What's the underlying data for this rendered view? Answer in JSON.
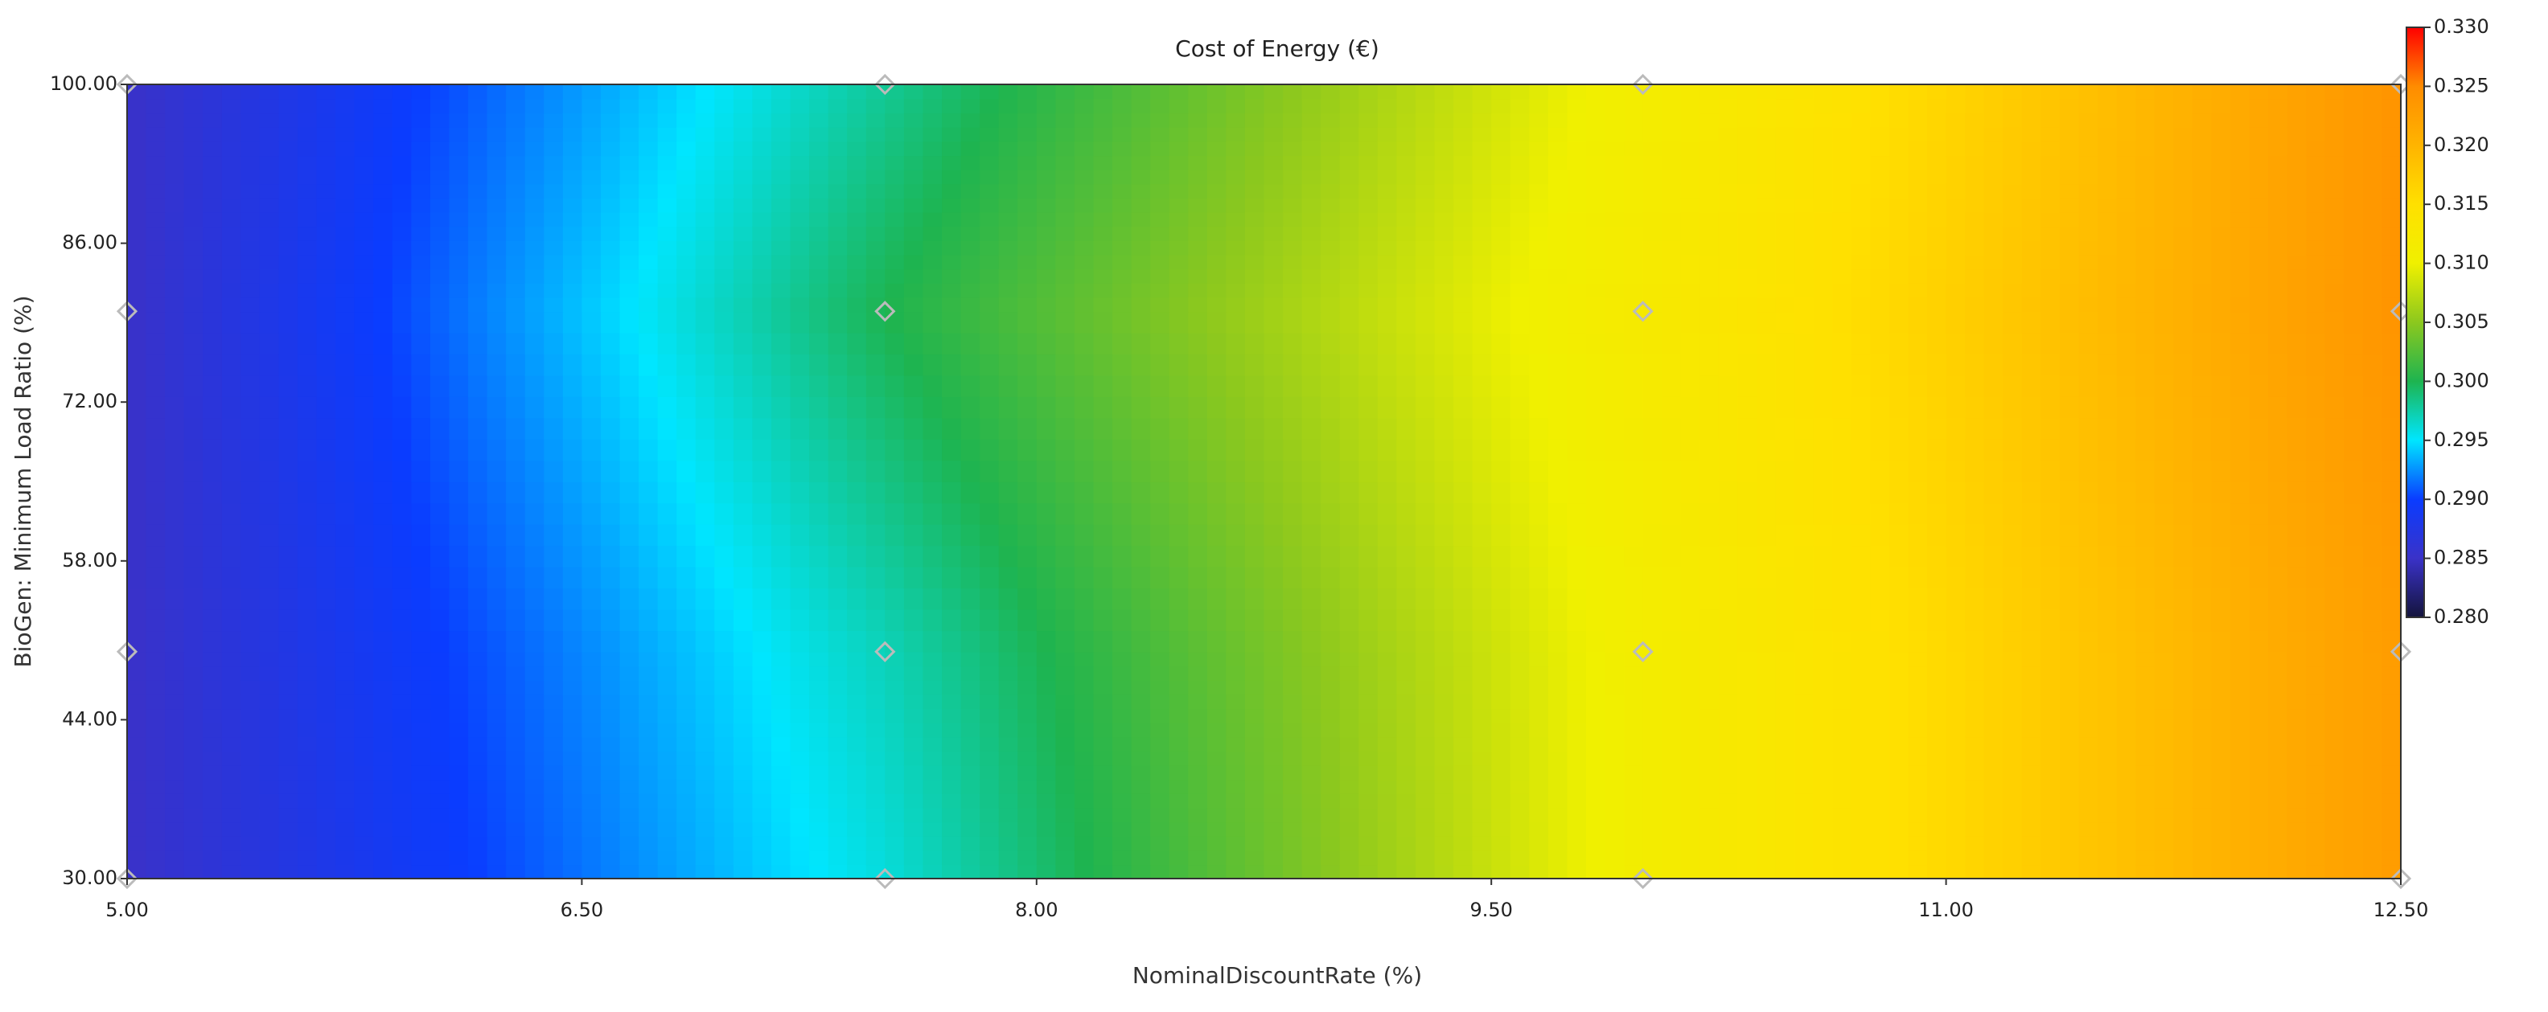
{
  "chart_data": {
    "type": "heatmap",
    "title": "Cost of Energy (€)",
    "x_label": "NominalDiscountRate (%)",
    "y_label": "BioGen: Minimum Load Ratio (%)",
    "x": [
      5,
      7.5,
      10,
      12.5
    ],
    "y": [
      30,
      50,
      80,
      100
    ],
    "z": [
      [
        0.285,
        0.296,
        0.311,
        0.323
      ],
      [
        0.285,
        0.297,
        0.311,
        0.323
      ],
      [
        0.285,
        0.3,
        0.312,
        0.324
      ],
      [
        0.285,
        0.298,
        0.311,
        0.324
      ]
    ],
    "xlim": [
      5,
      12.5
    ],
    "xticks": [
      {
        "value": 5,
        "label": "5.00"
      },
      {
        "value": 6.5,
        "label": "6.50"
      },
      {
        "value": 8,
        "label": "8.00"
      },
      {
        "value": 9.5,
        "label": "9.50"
      },
      {
        "value": 11,
        "label": "11.00"
      },
      {
        "value": 12.5,
        "label": "12.50"
      }
    ],
    "ylim": [
      30,
      100
    ],
    "yticks": [
      {
        "value": 30,
        "label": "30.00"
      },
      {
        "value": 44,
        "label": "44.00"
      },
      {
        "value": 58,
        "label": "58.00"
      },
      {
        "value": 72,
        "label": "72.00"
      },
      {
        "value": 86,
        "label": "86.00"
      },
      {
        "value": 100,
        "label": "100.00"
      }
    ],
    "clim": [
      0.28,
      0.33
    ],
    "cticks": [
      {
        "value": 0.28,
        "label": "0.280"
      },
      {
        "value": 0.285,
        "label": "0.285"
      },
      {
        "value": 0.29,
        "label": "0.290"
      },
      {
        "value": 0.295,
        "label": "0.295"
      },
      {
        "value": 0.3,
        "label": "0.300"
      },
      {
        "value": 0.305,
        "label": "0.305"
      },
      {
        "value": 0.31,
        "label": "0.310"
      },
      {
        "value": 0.315,
        "label": "0.315"
      },
      {
        "value": 0.32,
        "label": "0.320"
      },
      {
        "value": 0.325,
        "label": "0.325"
      },
      {
        "value": 0.33,
        "label": "0.330"
      }
    ],
    "colormap": [
      "#14143c",
      "#3a32c8",
      "#0a3cff",
      "#00e6ff",
      "#1eb450",
      "#8cc81e",
      "#f0f000",
      "#ffe000",
      "#ffb400",
      "#ff8c00",
      "#ff0000"
    ]
  }
}
